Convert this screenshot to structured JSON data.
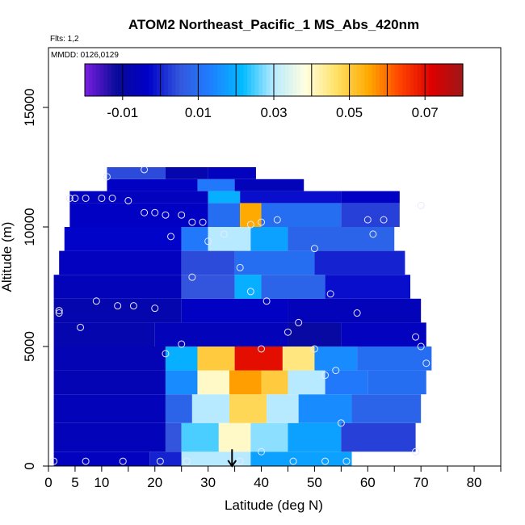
{
  "chart_data": {
    "type": "heatmap",
    "title": "ATOM2 Northeast_Pacific_1 MS_Abs_420nm",
    "flights_note": "Flts: 1,2",
    "dates_note": "MMDD: 0126,0129",
    "xlabel": "Latitude (deg N)",
    "ylabel": "Altitude (m)",
    "xlim": [
      0,
      85
    ],
    "ylim": [
      0,
      17500
    ],
    "x_ticks": [
      0,
      5,
      10,
      20,
      30,
      40,
      50,
      60,
      70,
      80
    ],
    "x_minor_ticks": [
      15,
      25,
      35,
      45,
      55,
      65,
      75,
      85
    ],
    "y_ticks": [
      0,
      5000,
      10000,
      15000
    ],
    "colorbar": {
      "range": [
        -0.02,
        0.08
      ],
      "tick_labels": [
        "-0.01",
        "0.01",
        "0.03",
        "0.05",
        "0.07"
      ],
      "tick_values": [
        -0.01,
        0.01,
        0.03,
        0.05,
        0.07
      ],
      "colors": [
        "#7a1fe0",
        "#0a0a9a",
        "#0000c8",
        "#3355dd",
        "#1e7fff",
        "#00bbff",
        "#b8eaff",
        "#ffffe0",
        "#ffe066",
        "#ffaa00",
        "#ff4400",
        "#dd0000",
        "#9e1717"
      ]
    },
    "grid": false,
    "cells": [
      {
        "lat": [
          1,
          19
        ],
        "alt": [
          0,
          600
        ],
        "v": -0.005
      },
      {
        "lat": [
          19,
          25
        ],
        "alt": [
          0,
          600
        ],
        "v": 0.0
      },
      {
        "lat": [
          25,
          38
        ],
        "alt": [
          0,
          600
        ],
        "v": 0.03
      },
      {
        "lat": [
          38,
          57
        ],
        "alt": [
          0,
          600
        ],
        "v": 0.018
      },
      {
        "lat": [
          1,
          22
        ],
        "alt": [
          600,
          1800
        ],
        "v": -0.006
      },
      {
        "lat": [
          22,
          25
        ],
        "alt": [
          600,
          1800
        ],
        "v": 0.005
      },
      {
        "lat": [
          25,
          32
        ],
        "alt": [
          600,
          1800
        ],
        "v": 0.025
      },
      {
        "lat": [
          32,
          38
        ],
        "alt": [
          600,
          1800
        ],
        "v": 0.04
      },
      {
        "lat": [
          38,
          45
        ],
        "alt": [
          600,
          1800
        ],
        "v": 0.028
      },
      {
        "lat": [
          45,
          55
        ],
        "alt": [
          600,
          1800
        ],
        "v": 0.018
      },
      {
        "lat": [
          55,
          69
        ],
        "alt": [
          600,
          1800
        ],
        "v": 0.003
      },
      {
        "lat": [
          1,
          22
        ],
        "alt": [
          1800,
          3000
        ],
        "v": -0.006
      },
      {
        "lat": [
          22,
          27
        ],
        "alt": [
          1800,
          3000
        ],
        "v": 0.008
      },
      {
        "lat": [
          27,
          34
        ],
        "alt": [
          1800,
          3000
        ],
        "v": 0.03
      },
      {
        "lat": [
          34,
          41
        ],
        "alt": [
          1800,
          3000
        ],
        "v": 0.048
      },
      {
        "lat": [
          41,
          47
        ],
        "alt": [
          1800,
          3000
        ],
        "v": 0.03
      },
      {
        "lat": [
          47,
          57
        ],
        "alt": [
          1800,
          3000
        ],
        "v": 0.015
      },
      {
        "lat": [
          57,
          70
        ],
        "alt": [
          1800,
          3000
        ],
        "v": 0.008
      },
      {
        "lat": [
          1,
          22
        ],
        "alt": [
          3000,
          4000
        ],
        "v": -0.007
      },
      {
        "lat": [
          22,
          28
        ],
        "alt": [
          3000,
          4000
        ],
        "v": 0.015
      },
      {
        "lat": [
          28,
          34
        ],
        "alt": [
          3000,
          4000
        ],
        "v": 0.04
      },
      {
        "lat": [
          34,
          40
        ],
        "alt": [
          3000,
          4000
        ],
        "v": 0.056
      },
      {
        "lat": [
          40,
          45
        ],
        "alt": [
          3000,
          4000
        ],
        "v": 0.05
      },
      {
        "lat": [
          45,
          52
        ],
        "alt": [
          3000,
          4000
        ],
        "v": 0.03
      },
      {
        "lat": [
          52,
          60
        ],
        "alt": [
          3000,
          4000
        ],
        "v": 0.012
      },
      {
        "lat": [
          60,
          71
        ],
        "alt": [
          3000,
          4000
        ],
        "v": 0.01
      },
      {
        "lat": [
          1,
          22
        ],
        "alt": [
          4000,
          5000
        ],
        "v": -0.007
      },
      {
        "lat": [
          22,
          28
        ],
        "alt": [
          4000,
          5000
        ],
        "v": 0.02
      },
      {
        "lat": [
          28,
          35
        ],
        "alt": [
          4000,
          5000
        ],
        "v": 0.05
      },
      {
        "lat": [
          35,
          44
        ],
        "alt": [
          4000,
          5000
        ],
        "v": 0.07
      },
      {
        "lat": [
          44,
          50
        ],
        "alt": [
          4000,
          5000
        ],
        "v": 0.045
      },
      {
        "lat": [
          50,
          58
        ],
        "alt": [
          4000,
          5000
        ],
        "v": 0.015
      },
      {
        "lat": [
          58,
          72
        ],
        "alt": [
          4000,
          5000
        ],
        "v": 0.01
      },
      {
        "lat": [
          1,
          20
        ],
        "alt": [
          5000,
          6000
        ],
        "v": -0.008
      },
      {
        "lat": [
          20,
          45
        ],
        "alt": [
          5000,
          6000
        ],
        "v": -0.006
      },
      {
        "lat": [
          45,
          55
        ],
        "alt": [
          5000,
          6000
        ],
        "v": -0.01
      },
      {
        "lat": [
          55,
          71
        ],
        "alt": [
          5000,
          6000
        ],
        "v": -0.005
      },
      {
        "lat": [
          1,
          25
        ],
        "alt": [
          6000,
          7000
        ],
        "v": -0.008
      },
      {
        "lat": [
          25,
          45
        ],
        "alt": [
          6000,
          7000
        ],
        "v": -0.004
      },
      {
        "lat": [
          45,
          70
        ],
        "alt": [
          6000,
          7000
        ],
        "v": -0.006
      },
      {
        "lat": [
          1,
          25
        ],
        "alt": [
          7000,
          8000
        ],
        "v": -0.006
      },
      {
        "lat": [
          25,
          35
        ],
        "alt": [
          7000,
          8000
        ],
        "v": 0.005
      },
      {
        "lat": [
          35,
          40
        ],
        "alt": [
          7000,
          8000
        ],
        "v": 0.02
      },
      {
        "lat": [
          40,
          52
        ],
        "alt": [
          7000,
          8000
        ],
        "v": 0.008
      },
      {
        "lat": [
          52,
          68
        ],
        "alt": [
          7000,
          8000
        ],
        "v": -0.002
      },
      {
        "lat": [
          2,
          25
        ],
        "alt": [
          8000,
          9000
        ],
        "v": -0.005
      },
      {
        "lat": [
          25,
          35
        ],
        "alt": [
          8000,
          9000
        ],
        "v": 0.004
      },
      {
        "lat": [
          35,
          50
        ],
        "alt": [
          8000,
          9000
        ],
        "v": 0.01
      },
      {
        "lat": [
          50,
          67
        ],
        "alt": [
          8000,
          9000
        ],
        "v": 0.0
      },
      {
        "lat": [
          3,
          25
        ],
        "alt": [
          9000,
          10000
        ],
        "v": -0.003
      },
      {
        "lat": [
          25,
          30
        ],
        "alt": [
          9000,
          10000
        ],
        "v": 0.012
      },
      {
        "lat": [
          30,
          38
        ],
        "alt": [
          9000,
          10000
        ],
        "v": 0.03
      },
      {
        "lat": [
          38,
          45
        ],
        "alt": [
          9000,
          10000
        ],
        "v": 0.018
      },
      {
        "lat": [
          45,
          65
        ],
        "alt": [
          9000,
          10000
        ],
        "v": 0.008
      },
      {
        "lat": [
          4,
          30
        ],
        "alt": [
          10000,
          11000
        ],
        "v": -0.004
      },
      {
        "lat": [
          30,
          36
        ],
        "alt": [
          10000,
          11000
        ],
        "v": 0.01
      },
      {
        "lat": [
          36,
          40
        ],
        "alt": [
          10000,
          11000
        ],
        "v": 0.055
      },
      {
        "lat": [
          40,
          55
        ],
        "alt": [
          10000,
          11000
        ],
        "v": 0.01
      },
      {
        "lat": [
          55,
          66
        ],
        "alt": [
          10000,
          11000
        ],
        "v": 0.003
      },
      {
        "lat": [
          4,
          30
        ],
        "alt": [
          11000,
          11500
        ],
        "v": -0.005
      },
      {
        "lat": [
          30,
          36
        ],
        "alt": [
          11000,
          11500
        ],
        "v": 0.02
      },
      {
        "lat": [
          36,
          55
        ],
        "alt": [
          11000,
          11500
        ],
        "v": -0.002
      },
      {
        "lat": [
          55,
          66
        ],
        "alt": [
          11000,
          11500
        ],
        "v": -0.004
      },
      {
        "lat": [
          11,
          28
        ],
        "alt": [
          11500,
          12000
        ],
        "v": -0.004
      },
      {
        "lat": [
          28,
          35
        ],
        "alt": [
          11500,
          12000
        ],
        "v": 0.012
      },
      {
        "lat": [
          35,
          48
        ],
        "alt": [
          11500,
          12000
        ],
        "v": -0.006
      },
      {
        "lat": [
          11,
          22
        ],
        "alt": [
          12000,
          12500
        ],
        "v": 0.004
      },
      {
        "lat": [
          22,
          30
        ],
        "alt": [
          12000,
          12500
        ],
        "v": -0.008
      },
      {
        "lat": [
          30,
          39
        ],
        "alt": [
          12000,
          12500
        ],
        "v": -0.005
      }
    ],
    "flight_points": [
      {
        "lat": 1,
        "alt": 200
      },
      {
        "lat": 7,
        "alt": 200
      },
      {
        "lat": 14,
        "alt": 200
      },
      {
        "lat": 21,
        "alt": 200
      },
      {
        "lat": 26,
        "alt": 200
      },
      {
        "lat": 36,
        "alt": 200
      },
      {
        "lat": 46,
        "alt": 200
      },
      {
        "lat": 52,
        "alt": 200
      },
      {
        "lat": 56,
        "alt": 200
      },
      {
        "lat": 40,
        "alt": 600
      },
      {
        "lat": 69,
        "alt": 600
      },
      {
        "lat": 55,
        "alt": 1800
      },
      {
        "lat": 52,
        "alt": 3800
      },
      {
        "lat": 54,
        "alt": 4000
      },
      {
        "lat": 71,
        "alt": 4300
      },
      {
        "lat": 22,
        "alt": 4700
      },
      {
        "lat": 25,
        "alt": 5100
      },
      {
        "lat": 40,
        "alt": 4900
      },
      {
        "lat": 50,
        "alt": 4900
      },
      {
        "lat": 70,
        "alt": 5000
      },
      {
        "lat": 69,
        "alt": 5400
      },
      {
        "lat": 45,
        "alt": 5600
      },
      {
        "lat": 47,
        "alt": 6000
      },
      {
        "lat": 6,
        "alt": 5800
      },
      {
        "lat": 2,
        "alt": 6400
      },
      {
        "lat": 2,
        "alt": 6500
      },
      {
        "lat": 9,
        "alt": 6900
      },
      {
        "lat": 13,
        "alt": 6700
      },
      {
        "lat": 16,
        "alt": 6700
      },
      {
        "lat": 20,
        "alt": 6600
      },
      {
        "lat": 41,
        "alt": 6900
      },
      {
        "lat": 58,
        "alt": 6400
      },
      {
        "lat": 38,
        "alt": 7300
      },
      {
        "lat": 53,
        "alt": 7200
      },
      {
        "lat": 27,
        "alt": 7900
      },
      {
        "lat": 36,
        "alt": 8300
      },
      {
        "lat": 30,
        "alt": 9400
      },
      {
        "lat": 50,
        "alt": 9100
      },
      {
        "lat": 23,
        "alt": 9600
      },
      {
        "lat": 33,
        "alt": 9700
      },
      {
        "lat": 61,
        "alt": 9700
      },
      {
        "lat": 38,
        "alt": 10100
      },
      {
        "lat": 40,
        "alt": 10200
      },
      {
        "lat": 43,
        "alt": 10300
      },
      {
        "lat": 27,
        "alt": 10200
      },
      {
        "lat": 29,
        "alt": 10200
      },
      {
        "lat": 18,
        "alt": 10600
      },
      {
        "lat": 20,
        "alt": 10600
      },
      {
        "lat": 22,
        "alt": 10500
      },
      {
        "lat": 25,
        "alt": 10500
      },
      {
        "lat": 60,
        "alt": 10300
      },
      {
        "lat": 63,
        "alt": 10300
      },
      {
        "lat": 70,
        "alt": 10900
      },
      {
        "lat": 4,
        "alt": 11200
      },
      {
        "lat": 5,
        "alt": 11200
      },
      {
        "lat": 7,
        "alt": 11200
      },
      {
        "lat": 10,
        "alt": 11200
      },
      {
        "lat": 12,
        "alt": 11200
      },
      {
        "lat": 15,
        "alt": 11100
      },
      {
        "lat": 11,
        "alt": 12100
      },
      {
        "lat": 18,
        "alt": 12400
      }
    ],
    "arrow_marker": {
      "lat": 34.5,
      "alt_from": 700,
      "alt_to": 0
    }
  }
}
